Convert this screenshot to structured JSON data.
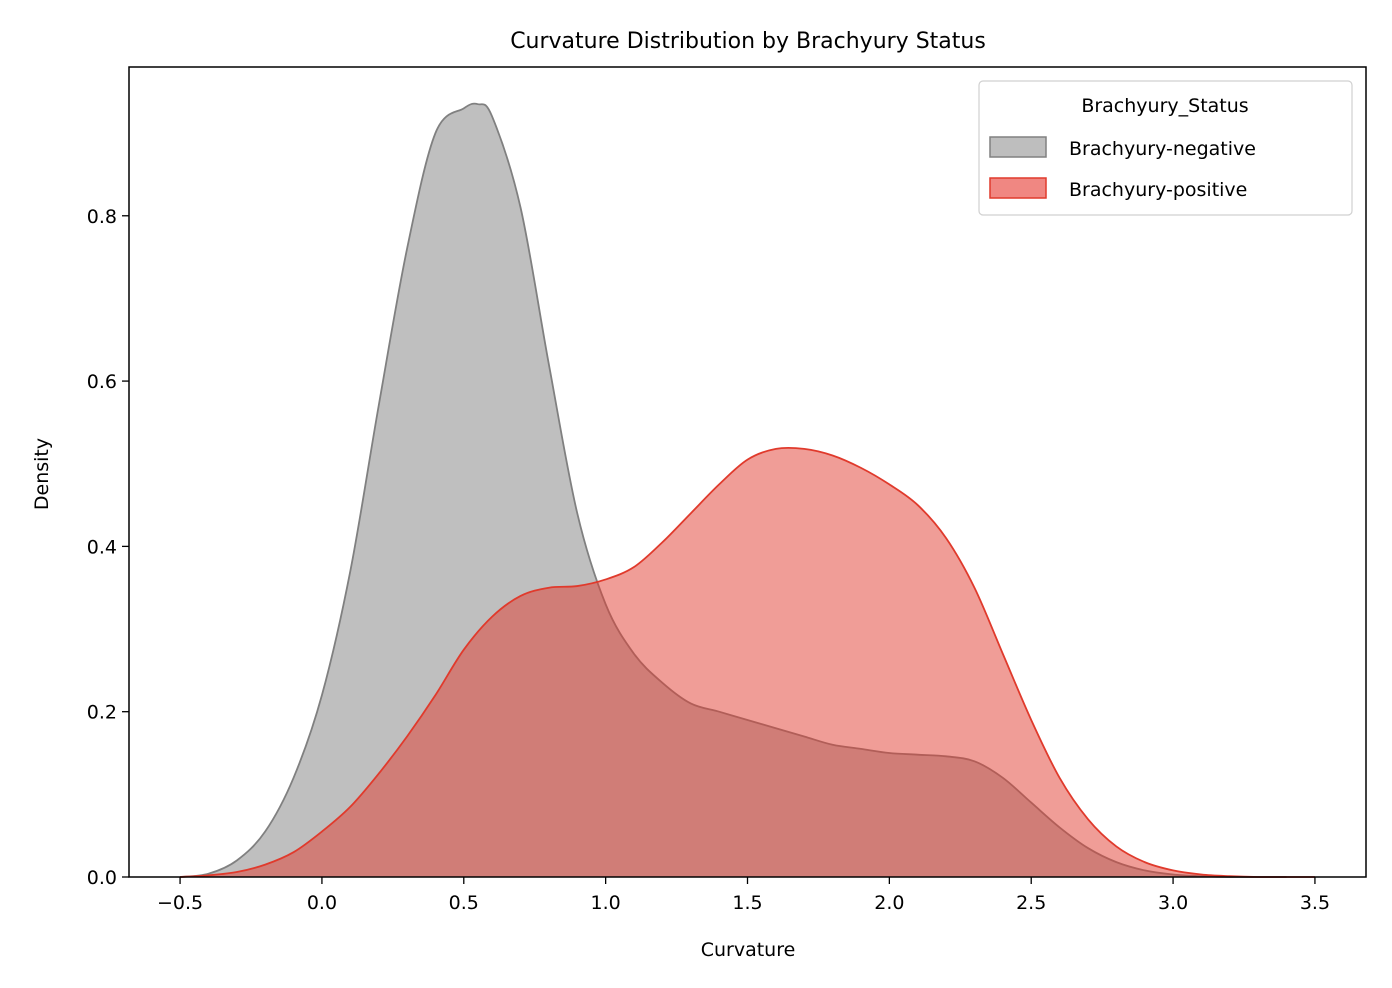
{
  "chart_data": {
    "type": "area",
    "title": "Curvature Distribution by Brachyury Status",
    "xlabel": "Curvature",
    "ylabel": "Density",
    "xlim": [
      -0.68,
      3.68
    ],
    "ylim": [
      0,
      0.98
    ],
    "xticks": [
      -0.5,
      0.0,
      0.5,
      1.0,
      1.5,
      2.0,
      2.5,
      3.0,
      3.5
    ],
    "xtick_labels": [
      "−0.5",
      "0.0",
      "0.5",
      "1.0",
      "1.5",
      "2.0",
      "2.5",
      "3.0",
      "3.5"
    ],
    "yticks": [
      0.0,
      0.2,
      0.4,
      0.6,
      0.8
    ],
    "ytick_labels": [
      "0.0",
      "0.2",
      "0.4",
      "0.6",
      "0.8"
    ],
    "grid": false,
    "legend": {
      "title": "Brachyury_Status",
      "position": "top-right"
    },
    "series": [
      {
        "name": "Brachyury-negative",
        "fill": "#bebebe",
        "stroke": "#808080",
        "x": [
          -0.5,
          -0.4,
          -0.3,
          -0.2,
          -0.1,
          0.0,
          0.1,
          0.2,
          0.3,
          0.4,
          0.5,
          0.55,
          0.6,
          0.7,
          0.8,
          0.9,
          1.0,
          1.1,
          1.2,
          1.3,
          1.4,
          1.5,
          1.6,
          1.7,
          1.8,
          1.9,
          2.0,
          2.1,
          2.2,
          2.3,
          2.4,
          2.5,
          2.6,
          2.7,
          2.8,
          2.9,
          3.0,
          3.1,
          3.2,
          3.3,
          3.4
        ],
        "y": [
          0.0,
          0.004,
          0.02,
          0.055,
          0.12,
          0.22,
          0.37,
          0.57,
          0.76,
          0.9,
          0.93,
          0.935,
          0.92,
          0.81,
          0.62,
          0.44,
          0.33,
          0.27,
          0.235,
          0.21,
          0.2,
          0.19,
          0.18,
          0.17,
          0.16,
          0.155,
          0.15,
          0.148,
          0.146,
          0.14,
          0.12,
          0.09,
          0.06,
          0.035,
          0.018,
          0.008,
          0.003,
          0.001,
          0.0,
          0.0,
          0.0
        ]
      },
      {
        "name": "Brachyury-positive",
        "fill": "#f08782",
        "stroke": "#e03a2c",
        "x": [
          -0.5,
          -0.4,
          -0.3,
          -0.2,
          -0.1,
          0.0,
          0.1,
          0.2,
          0.3,
          0.4,
          0.5,
          0.6,
          0.7,
          0.8,
          0.9,
          1.0,
          1.1,
          1.2,
          1.3,
          1.4,
          1.5,
          1.6,
          1.7,
          1.8,
          1.9,
          2.0,
          2.1,
          2.2,
          2.3,
          2.4,
          2.5,
          2.6,
          2.7,
          2.8,
          2.9,
          3.0,
          3.1,
          3.2,
          3.3,
          3.4,
          3.5
        ],
        "y": [
          0.0,
          0.002,
          0.006,
          0.015,
          0.03,
          0.055,
          0.085,
          0.125,
          0.17,
          0.22,
          0.275,
          0.315,
          0.34,
          0.35,
          0.352,
          0.36,
          0.375,
          0.405,
          0.44,
          0.475,
          0.505,
          0.518,
          0.518,
          0.51,
          0.495,
          0.475,
          0.45,
          0.41,
          0.35,
          0.27,
          0.19,
          0.12,
          0.07,
          0.037,
          0.018,
          0.008,
          0.003,
          0.001,
          0.0,
          0.0,
          0.0
        ]
      }
    ]
  }
}
